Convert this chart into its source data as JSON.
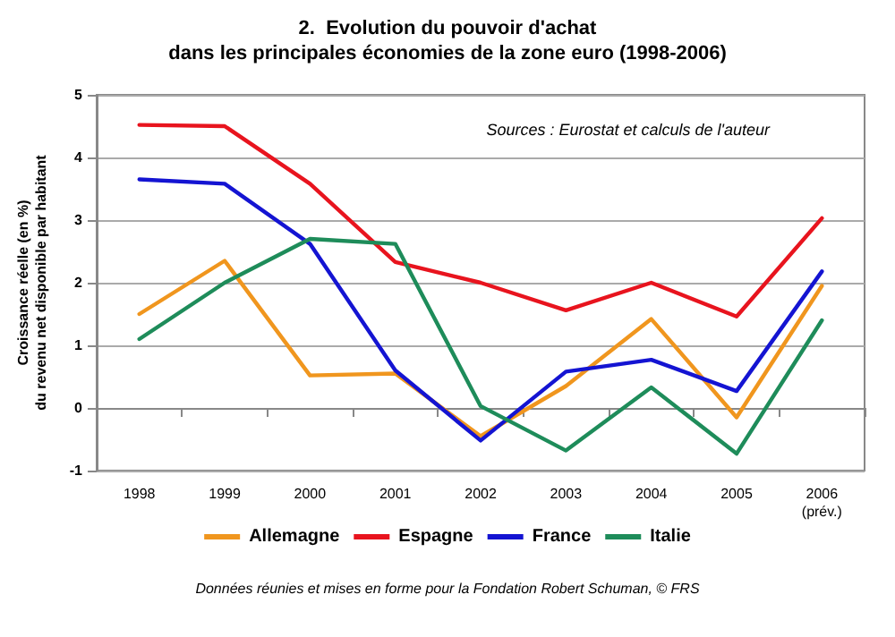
{
  "chart_data": {
    "type": "line",
    "title": "2.  Evolution du pouvoir d'achat\ndans les principales économies de la zone euro (1998-2006)",
    "ylabel": "Croissance réelle (en %)\ndu revenu net disponible par habitant",
    "categories": [
      "1998",
      "1999",
      "2000",
      "2001",
      "2002",
      "2003",
      "2004",
      "2005",
      "2006\n(prév.)"
    ],
    "series": [
      {
        "name": "Allemagne",
        "color": "#f0961e",
        "values": [
          1.5,
          2.35,
          0.52,
          0.55,
          -0.45,
          0.35,
          1.42,
          -0.15,
          1.95
        ]
      },
      {
        "name": "Espagne",
        "color": "#e8141e",
        "values": [
          4.52,
          4.5,
          3.58,
          2.33,
          2.0,
          1.56,
          2.0,
          1.46,
          3.03
        ]
      },
      {
        "name": "France",
        "color": "#1414d2",
        "values": [
          3.65,
          3.58,
          2.62,
          0.6,
          -0.52,
          0.58,
          0.77,
          0.27,
          2.18
        ]
      },
      {
        "name": "Italie",
        "color": "#1e8c5a",
        "values": [
          1.1,
          2.0,
          2.7,
          2.62,
          0.03,
          -0.68,
          0.33,
          -0.73,
          1.4
        ]
      }
    ],
    "ylim": [
      -1,
      5
    ],
    "yticks": [
      -1,
      0,
      1,
      2,
      3,
      4,
      5
    ],
    "grid": "y",
    "legend": "bottom",
    "marker": "none",
    "line_style": "solid",
    "annotations": [
      "Sources : Eurostat et calculs de l'auteur",
      "Données réunies et mises en forme pour la Fondation Robert Schuman, © FRS"
    ]
  }
}
